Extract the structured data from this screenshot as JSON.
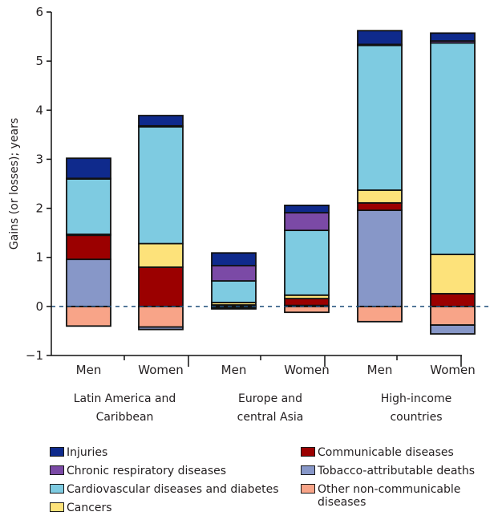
{
  "chart_data": {
    "type": "bar",
    "stacked": true,
    "title": "",
    "ylabel": "Gains (or losses); years",
    "xlabel": "",
    "ylim": [
      -1,
      6
    ],
    "yticks": [
      "6",
      "5",
      "4",
      "3",
      "2",
      "1",
      "0",
      "−1"
    ],
    "ytick_values": [
      6,
      5,
      4,
      3,
      2,
      1,
      0,
      -1
    ],
    "reference_line": {
      "value": 0,
      "style": "dashed",
      "color": "#1f4e79"
    },
    "categories": [
      "Men",
      "Women",
      "Men",
      "Women",
      "Men",
      "Women"
    ],
    "groups": [
      {
        "label_line1": "Latin America and",
        "label_line2": "Caribbean",
        "members": [
          0,
          1
        ]
      },
      {
        "label_line1": "Europe and",
        "label_line2": "central Asia",
        "members": [
          2,
          3
        ]
      },
      {
        "label_line1": "High-income",
        "label_line2": "countries",
        "members": [
          4,
          5
        ]
      }
    ],
    "series": [
      {
        "name": "Other non-communicable diseases",
        "color": "#f8a488",
        "values": [
          -0.4,
          -0.42,
          -0.03,
          -0.12,
          -0.31,
          -0.38
        ]
      },
      {
        "name": "Tobacco-attributable deaths",
        "color": "#8797c8",
        "values": [
          0.96,
          -0.05,
          -0.02,
          0.02,
          1.96,
          -0.18
        ]
      },
      {
        "name": "Communicable diseases",
        "color": "#9b0000",
        "values": [
          0.49,
          0.8,
          0.03,
          0.14,
          0.15,
          0.26
        ]
      },
      {
        "name": "Cancers",
        "color": "#fde27a",
        "values": [
          0.02,
          0.48,
          0.05,
          0.07,
          0.26,
          0.8
        ]
      },
      {
        "name": "Cardiovascular diseases and diabetes",
        "color": "#7ecbe1",
        "values": [
          1.13,
          2.38,
          0.44,
          1.32,
          2.95,
          4.31
        ]
      },
      {
        "name": "Chronic respiratory diseases",
        "color": "#7b4aa6",
        "values": [
          0.01,
          0.02,
          0.31,
          0.36,
          0.02,
          0.04
        ]
      },
      {
        "name": "Injuries",
        "color": "#0f2a8c",
        "values": [
          0.41,
          0.21,
          0.26,
          0.15,
          0.28,
          0.16
        ]
      }
    ],
    "legend": {
      "placement": "bottom",
      "left_column": [
        "Injuries",
        "Chronic respiratory diseases",
        "Cardiovascular diseases and diabetes",
        "Cancers"
      ],
      "right_column": [
        "Communicable diseases",
        "Tobacco-attributable deaths",
        "Other non-communicable diseases"
      ]
    },
    "grid": false
  },
  "legend_items": {
    "left": [
      {
        "label": "Injuries",
        "color": "#0f2a8c"
      },
      {
        "label": "Chronic respiratory diseases",
        "color": "#7b4aa6"
      },
      {
        "label": "Cardiovascular diseases and diabetes",
        "color": "#7ecbe1"
      },
      {
        "label": "Cancers",
        "color": "#fde27a"
      }
    ],
    "right": [
      {
        "label": "Communicable diseases",
        "color": "#9b0000"
      },
      {
        "label": "Tobacco-attributable deaths",
        "color": "#8797c8"
      },
      {
        "label": "Other non-communicable",
        "label_line2": "diseases",
        "color": "#f8a488"
      }
    ]
  }
}
